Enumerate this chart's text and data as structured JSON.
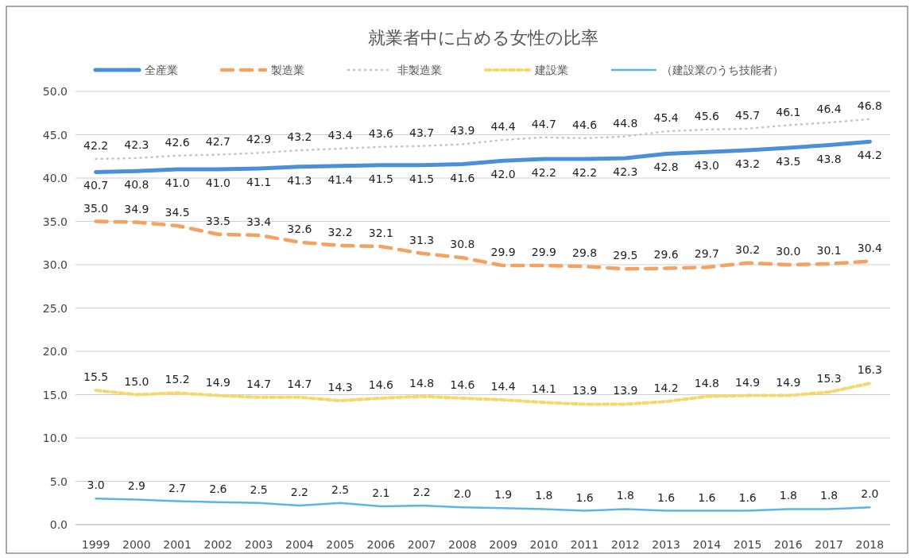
{
  "chart_data": {
    "type": "line",
    "title": "就業者中に占める女性の比率",
    "categories": [
      "1999",
      "2000",
      "2001",
      "2002",
      "2003",
      "2004",
      "2005",
      "2006",
      "2007",
      "2008",
      "2009",
      "2010",
      "2011",
      "2012",
      "2013",
      "2014",
      "2015",
      "2016",
      "2017",
      "2018"
    ],
    "ylim": [
      0,
      50
    ],
    "yticks": [
      {
        "value": 0,
        "label": "0.0"
      },
      {
        "value": 5,
        "label": "5.0"
      },
      {
        "value": 10,
        "label": "10.0"
      },
      {
        "value": 15,
        "label": "15.0"
      },
      {
        "value": 20,
        "label": "20.0"
      },
      {
        "value": 25,
        "label": "25.0"
      },
      {
        "value": 30,
        "label": "30.0"
      },
      {
        "value": 35,
        "label": "35.0"
      },
      {
        "value": 40,
        "label": "40.0"
      },
      {
        "value": 45,
        "label": "45.0"
      },
      {
        "value": 50,
        "label": "50.0"
      }
    ],
    "grid": "y",
    "legend": "top",
    "marker": "none",
    "series": [
      {
        "name": "全産業",
        "color": "#4a8fd8",
        "line_style": "solid",
        "values": [
          40.7,
          40.8,
          41.0,
          41.0,
          41.1,
          41.3,
          41.4,
          41.5,
          41.5,
          41.6,
          42.0,
          42.2,
          42.2,
          42.3,
          42.8,
          43.0,
          43.2,
          43.5,
          43.8,
          44.2
        ],
        "value_labels": [
          "40.7",
          "40.8",
          "41.0",
          "41.0",
          "41.1",
          "41.3",
          "41.4",
          "41.5",
          "41.5",
          "41.6",
          "42.0",
          "42.2",
          "42.2",
          "42.3",
          "42.8",
          "43.0",
          "43.2",
          "43.5",
          "43.8",
          "44.2"
        ]
      },
      {
        "name": "製造業",
        "color": "#f4a262",
        "line_style": "dashed",
        "values": [
          35.0,
          34.9,
          34.5,
          33.5,
          33.4,
          32.6,
          32.2,
          32.1,
          31.3,
          30.8,
          29.9,
          29.9,
          29.8,
          29.5,
          29.6,
          29.7,
          30.2,
          30.0,
          30.1,
          30.4
        ],
        "value_labels": [
          "35.0",
          "34.9",
          "34.5",
          "33.5",
          "33.4",
          "32.6",
          "32.2",
          "32.1",
          "31.3",
          "30.8",
          "29.9",
          "29.9",
          "29.8",
          "29.5",
          "29.6",
          "29.7",
          "30.2",
          "30.0",
          "30.1",
          "30.4"
        ]
      },
      {
        "name": "非製造業",
        "color": "#c4c4c4",
        "line_style": "dotted",
        "values": [
          42.2,
          42.3,
          42.6,
          42.7,
          42.9,
          43.2,
          43.4,
          43.6,
          43.7,
          43.9,
          44.4,
          44.7,
          44.6,
          44.8,
          45.4,
          45.6,
          45.7,
          46.1,
          46.4,
          46.8
        ],
        "value_labels": [
          "42.2",
          "42.3",
          "42.6",
          "42.7",
          "42.9",
          "43.2",
          "43.4",
          "43.6",
          "43.7",
          "43.9",
          "44.4",
          "44.7",
          "44.6",
          "44.8",
          "45.4",
          "45.6",
          "45.7",
          "46.1",
          "46.4",
          "46.8"
        ]
      },
      {
        "name": "建設業",
        "color": "#f6d769",
        "line_style": "dashed",
        "values": [
          15.5,
          15.0,
          15.2,
          14.9,
          14.7,
          14.7,
          14.3,
          14.6,
          14.8,
          14.6,
          14.4,
          14.1,
          13.9,
          13.9,
          14.2,
          14.8,
          14.9,
          14.9,
          15.3,
          16.3
        ],
        "value_labels": [
          "15.5",
          "15.0",
          "15.2",
          "14.9",
          "14.7",
          "14.7",
          "14.3",
          "14.6",
          "14.8",
          "14.6",
          "14.4",
          "14.1",
          "13.9",
          "13.9",
          "14.2",
          "14.8",
          "14.9",
          "14.9",
          "15.3",
          "16.3"
        ]
      },
      {
        "name": "（建設業のうち技能者）",
        "color": "#5bb6e6",
        "line_style": "solid",
        "values": [
          3.0,
          2.9,
          2.7,
          2.6,
          2.5,
          2.2,
          2.5,
          2.1,
          2.2,
          2.0,
          1.9,
          1.8,
          1.6,
          1.8,
          1.6,
          1.6,
          1.6,
          1.8,
          1.8,
          2.0
        ],
        "value_labels": [
          "3.0",
          "2.9",
          "2.7",
          "2.6",
          "2.5",
          "2.2",
          "2.5",
          "2.1",
          "2.2",
          "2.0",
          "1.9",
          "1.8",
          "1.6",
          "1.8",
          "1.6",
          "1.6",
          "1.6",
          "1.8",
          "1.8",
          "2.0"
        ]
      }
    ]
  }
}
